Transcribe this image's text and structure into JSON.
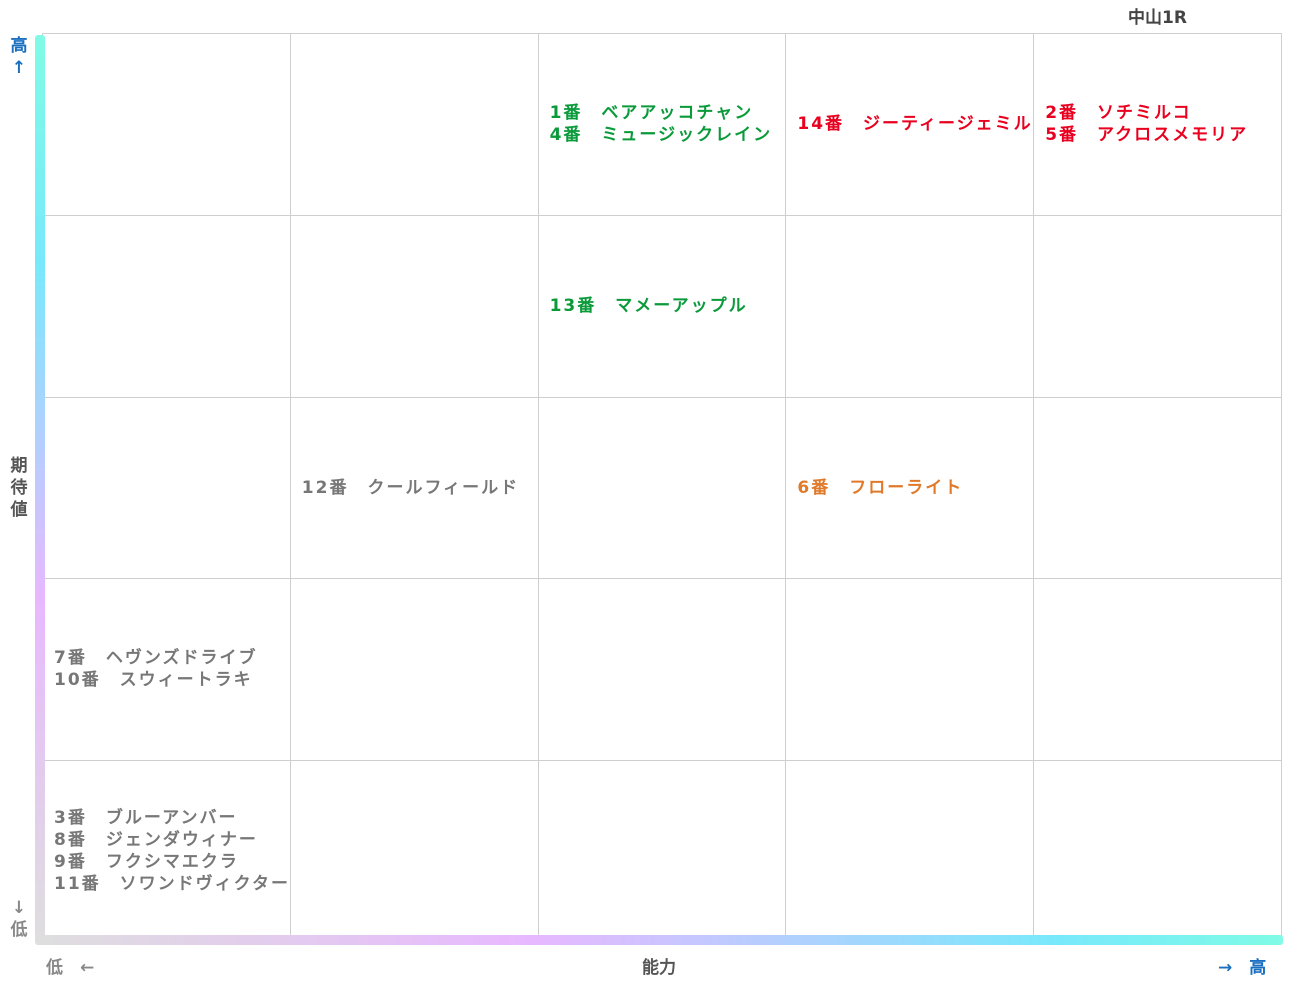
{
  "race": "中山1R",
  "colors": {
    "green": "#0a9a3a",
    "red": "#e8001e",
    "orange": "#e07a2a",
    "gray": "#777777",
    "blue": "#1a6fc0",
    "axis_label": "#555555"
  },
  "chart_data": {
    "type": "scatter",
    "title": "中山1R",
    "xlabel": "能力",
    "ylabel": "期待値",
    "x_low": "低",
    "x_high": "高",
    "y_low": "低",
    "y_high": "高",
    "arrow_left": "←",
    "arrow_right": "→",
    "arrow_up": "↑",
    "arrow_down": "↓",
    "grid": "5x5",
    "cells": [
      {
        "x": 3,
        "y": 5,
        "color": "green",
        "entries": [
          "1番　ベアアッコチャン",
          "4番　ミュージックレイン"
        ]
      },
      {
        "x": 4,
        "y": 5,
        "color": "red",
        "entries": [
          "14番　ジーティージェミル"
        ]
      },
      {
        "x": 5,
        "y": 5,
        "color": "red",
        "entries": [
          "2番　ソチミルコ",
          "5番　アクロスメモリア"
        ]
      },
      {
        "x": 3,
        "y": 4,
        "color": "green",
        "entries": [
          "13番　マメーアップル"
        ]
      },
      {
        "x": 2,
        "y": 3,
        "color": "gray",
        "entries": [
          "12番　クールフィールド"
        ]
      },
      {
        "x": 4,
        "y": 3,
        "color": "orange",
        "entries": [
          "6番　フローライト"
        ]
      },
      {
        "x": 1,
        "y": 2,
        "color": "gray",
        "entries": [
          "7番　ヘヴンズドライブ",
          "10番　スウィートラキ"
        ]
      },
      {
        "x": 1,
        "y": 1,
        "color": "gray",
        "entries": [
          "3番　ブルーアンバー",
          "8番　ジェンダウィナー",
          "9番　フクシマエクラ",
          "11番　ソワンドヴィクター"
        ]
      }
    ]
  }
}
